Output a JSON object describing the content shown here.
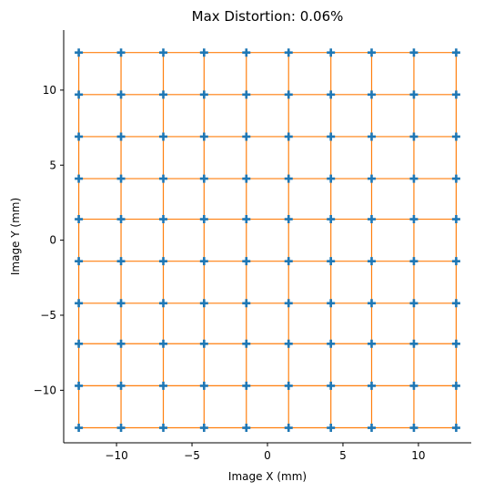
{
  "chart_data": {
    "type": "scatter",
    "title": "Max Distortion: 0.06%",
    "xlabel": "Image X (mm)",
    "ylabel": "Image Y (mm)",
    "xlim": [
      -13.5,
      13.5
    ],
    "ylim": [
      -13.5,
      14.0
    ],
    "xticks": [
      -10,
      -5,
      0,
      5,
      10
    ],
    "yticks": [
      -10,
      -5,
      0,
      5,
      10
    ],
    "xtick_labels": [
      "−10",
      "−5",
      "0",
      "5",
      "10"
    ],
    "ytick_labels": [
      "−10",
      "−5",
      "0",
      "5",
      "10"
    ],
    "grid": false,
    "grid_x": [
      -12.5,
      -9.7,
      -6.9,
      -4.2,
      -1.4,
      1.4,
      4.2,
      6.9,
      9.7,
      12.5
    ],
    "grid_y": [
      -12.5,
      -9.7,
      -6.9,
      -4.2,
      -1.4,
      1.4,
      4.1,
      6.9,
      9.7,
      12.5
    ],
    "series": [
      {
        "role": "grid-lines",
        "color": "#ff7f0e"
      },
      {
        "role": "points",
        "marker": "plus",
        "color": "#1f77b4"
      }
    ]
  }
}
